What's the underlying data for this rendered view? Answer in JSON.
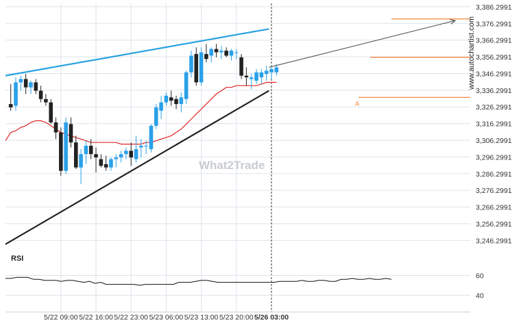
{
  "watermark": "What2Trade",
  "side_label": "www.autochartist.com",
  "point_label": "A",
  "colors": {
    "bull": "#2aa1e8",
    "bear": "#222222",
    "ma": "#e02424",
    "resistance": "#2ba2e0",
    "support": "#222222",
    "projection": "#f07d2a",
    "grid": "#dde3ea",
    "rsi_line": "#111111"
  },
  "chart_data": [
    {
      "type": "candlestick",
      "y_ticks": [
        "3,386.2991",
        "3,376.2991",
        "3,366.2991",
        "3,356.2991",
        "3,346.2991",
        "3,336.2991",
        "3,326.2991",
        "3,316.2991",
        "3,306.2991",
        "3,296.2991",
        "3,286.2991",
        "3,276.2991",
        "3,266.2991",
        "3,256.2991",
        "3,246.2991"
      ],
      "ylim": [
        3240.2991,
        3388.2991
      ],
      "x_ticks": [
        "5/22 09:00",
        "5/22 16:00",
        "5/22 23:00",
        "5/23 06:00",
        "5/23 13:00",
        "5/23 20:00",
        "5/26 03:00"
      ],
      "x_tick_positions": [
        10,
        17,
        24,
        31,
        38,
        45,
        52
      ],
      "highlighted_x_tick": "5/26 03:00",
      "candles": [
        [
          3328,
          3340,
          3324,
          3326
        ],
        [
          3327,
          3344,
          3324,
          3341
        ],
        [
          3341,
          3345,
          3336,
          3343
        ],
        [
          3343,
          3346,
          3334,
          3338
        ],
        [
          3338,
          3342,
          3334,
          3341
        ],
        [
          3341,
          3343,
          3334,
          3336
        ],
        [
          3336,
          3339,
          3329,
          3331
        ],
        [
          3331,
          3334,
          3327,
          3329
        ],
        [
          3329,
          3331,
          3316,
          3317
        ],
        [
          3317,
          3320,
          3307,
          3311
        ],
        [
          3311,
          3314,
          3285,
          3288
        ],
        [
          3288,
          3320,
          3286,
          3317
        ],
        [
          3316,
          3320,
          3302,
          3305
        ],
        [
          3305,
          3309,
          3289,
          3290
        ],
        [
          3290,
          3301,
          3280,
          3298
        ],
        [
          3298,
          3306,
          3292,
          3303
        ],
        [
          3303,
          3307,
          3295,
          3298
        ],
        [
          3298,
          3302,
          3287,
          3296
        ],
        [
          3295,
          3298,
          3290,
          3291
        ],
        [
          3292,
          3297,
          3288,
          3290
        ],
        [
          3290,
          3296,
          3288,
          3295
        ],
        [
          3295,
          3298,
          3290,
          3296
        ],
        [
          3296,
          3300,
          3293,
          3298
        ],
        [
          3298,
          3302,
          3295,
          3300
        ],
        [
          3300,
          3305,
          3291,
          3296
        ],
        [
          3295,
          3309,
          3293,
          3301
        ],
        [
          3302,
          3307,
          3296,
          3303
        ],
        [
          3303,
          3306,
          3298,
          3303
        ],
        [
          3301,
          3316,
          3299,
          3315
        ],
        [
          3315,
          3328,
          3313,
          3326
        ],
        [
          3324,
          3333,
          3319,
          3329
        ],
        [
          3329,
          3335,
          3327,
          3333
        ],
        [
          3332,
          3336,
          3327,
          3330
        ],
        [
          3331,
          3333,
          3325,
          3328
        ],
        [
          3328,
          3335,
          3323,
          3332
        ],
        [
          3331,
          3348,
          3328,
          3347
        ],
        [
          3347,
          3360,
          3344,
          3357
        ],
        [
          3358,
          3362,
          3339,
          3341
        ],
        [
          3341,
          3362,
          3339,
          3359
        ],
        [
          3358,
          3364,
          3353,
          3355
        ],
        [
          3357,
          3362,
          3353,
          3361
        ],
        [
          3361,
          3364,
          3356,
          3359
        ],
        [
          3359,
          3363,
          3355,
          3360
        ],
        [
          3360,
          3362,
          3356,
          3357
        ],
        [
          3357,
          3361,
          3354,
          3360
        ],
        [
          3359,
          3361,
          3355,
          3359
        ],
        [
          3356,
          3358,
          3343,
          3345
        ],
        [
          3345,
          3350,
          3339,
          3344
        ],
        [
          3343,
          3346,
          3337,
          3344
        ],
        [
          3342,
          3349,
          3340,
          3347
        ],
        [
          3344,
          3349,
          3340,
          3347
        ],
        [
          3346,
          3351,
          3342,
          3348
        ],
        [
          3347,
          3351,
          3343,
          3349
        ],
        [
          3347,
          3352,
          3345,
          3350
        ]
      ],
      "moving_average": [
        3311,
        3312,
        3314,
        3315,
        3317,
        3318,
        3318,
        3317,
        3315,
        3313,
        3311,
        3310,
        3309,
        3308,
        3307,
        3306,
        3305,
        3305,
        3305,
        3305,
        3305,
        3305,
        3304,
        3304,
        3304,
        3304,
        3304,
        3305,
        3305,
        3306,
        3307,
        3308,
        3309,
        3311,
        3313,
        3316,
        3319,
        3322,
        3325,
        3328,
        3331,
        3334,
        3336,
        3338,
        3338,
        3339,
        3339,
        3339,
        3339,
        3339,
        3340,
        3341,
        3341,
        3341
      ],
      "resistance_line": {
        "start": [
          0,
          3345
        ],
        "end": [
          51.5,
          3373
        ]
      },
      "support_line": {
        "start": [
          0,
          3244
        ],
        "end": [
          51.5,
          3336
        ]
      },
      "projection": {
        "from": [
          51.5,
          3350
        ],
        "to": [
          63,
          3378
        ]
      },
      "levels": [
        3379,
        3356,
        3332
      ],
      "point_A": [
        50.5,
        3332
      ]
    },
    {
      "type": "line",
      "title": "RSI",
      "y_ticks": [
        "60",
        "40"
      ],
      "ylim": [
        30,
        70
      ],
      "values": [
        57,
        57,
        58,
        58,
        58,
        56,
        56,
        55,
        55,
        55,
        54,
        55,
        55,
        54,
        53,
        54,
        52,
        53,
        51,
        51,
        51,
        51,
        51,
        51,
        50,
        51,
        51,
        51,
        51,
        51,
        51,
        53,
        53,
        53,
        54,
        55,
        55,
        54,
        53,
        53,
        53,
        53,
        53,
        53,
        53,
        53,
        53,
        53,
        53,
        54,
        54,
        54,
        54,
        55,
        54,
        54,
        55,
        55,
        54,
        54,
        56,
        56,
        57,
        56,
        56,
        57,
        56,
        56,
        57,
        56
      ]
    }
  ]
}
